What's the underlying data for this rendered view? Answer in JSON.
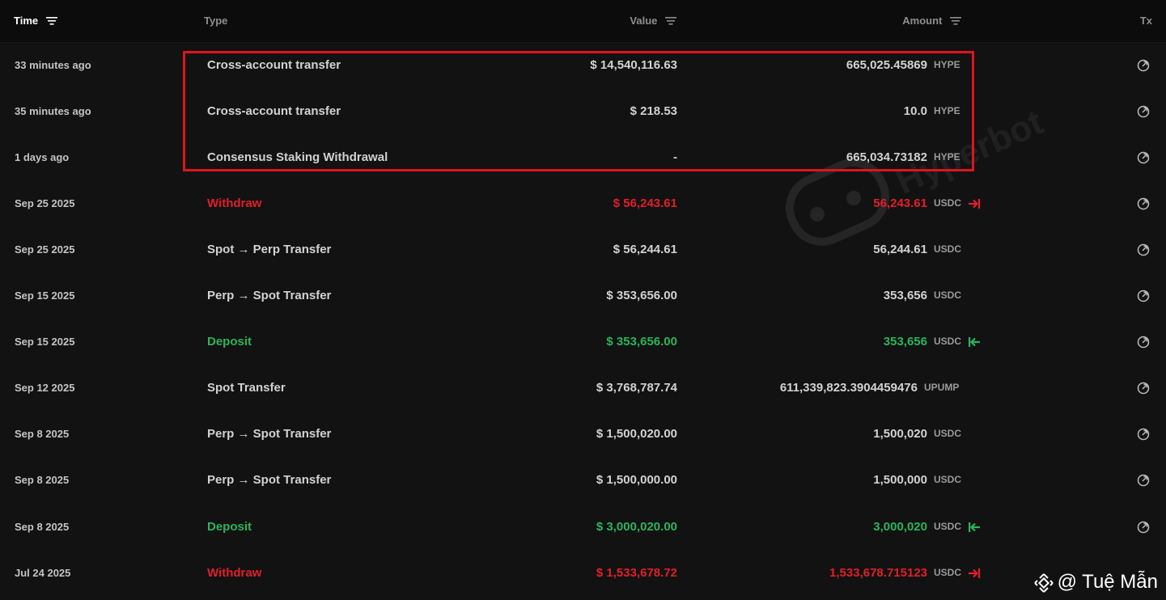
{
  "header": {
    "time": "Time",
    "type": "Type",
    "value": "Value",
    "amount": "Amount",
    "tx": "Tx"
  },
  "rows": [
    {
      "time": "33 minutes ago",
      "type": "Cross-account transfer",
      "value": "$ 14,540,116.63",
      "amount": "665,025.45869",
      "token": "HYPE",
      "tone": "neutral",
      "direction": ""
    },
    {
      "time": "35 minutes ago",
      "type": "Cross-account transfer",
      "value": "$ 218.53",
      "amount": "10.0",
      "token": "HYPE",
      "tone": "neutral",
      "direction": ""
    },
    {
      "time": "1 days ago",
      "type": "Consensus Staking Withdrawal",
      "value": "-",
      "amount": "665,034.73182",
      "token": "HYPE",
      "tone": "neutral",
      "direction": ""
    },
    {
      "time": "Sep 25 2025",
      "type": "Withdraw",
      "value": "$ 56,243.61",
      "amount": "56,243.61",
      "token": "USDC",
      "tone": "red",
      "direction": "out"
    },
    {
      "time": "Sep 25 2025",
      "type": "Spot → Perp Transfer",
      "value": "$ 56,244.61",
      "amount": "56,244.61",
      "token": "USDC",
      "tone": "neutral",
      "direction": ""
    },
    {
      "time": "Sep 15 2025",
      "type": "Perp → Spot Transfer",
      "value": "$ 353,656.00",
      "amount": "353,656",
      "token": "USDC",
      "tone": "neutral",
      "direction": ""
    },
    {
      "time": "Sep 15 2025",
      "type": "Deposit",
      "value": "$ 353,656.00",
      "amount": "353,656",
      "token": "USDC",
      "tone": "green",
      "direction": "in"
    },
    {
      "time": "Sep 12 2025",
      "type": "Spot Transfer",
      "value": "$ 3,768,787.74",
      "amount": "611,339,823.3904459476",
      "token": "UPUMP",
      "tone": "neutral",
      "direction": ""
    },
    {
      "time": "Sep 8 2025",
      "type": "Perp → Spot Transfer",
      "value": "$ 1,500,020.00",
      "amount": "1,500,020",
      "token": "USDC",
      "tone": "neutral",
      "direction": ""
    },
    {
      "time": "Sep 8 2025",
      "type": "Perp → Spot Transfer",
      "value": "$ 1,500,000.00",
      "amount": "1,500,000",
      "token": "USDC",
      "tone": "neutral",
      "direction": ""
    },
    {
      "time": "Sep 8 2025",
      "type": "Deposit",
      "value": "$ 3,000,020.00",
      "amount": "3,000,020",
      "token": "USDC",
      "tone": "green",
      "direction": "in"
    },
    {
      "time": "Jul 24 2025",
      "type": "Withdraw",
      "value": "$ 1,533,678.72",
      "amount": "1,533,678.715123",
      "token": "USDC",
      "tone": "red",
      "direction": "out"
    }
  ],
  "watermark": "Hyperbot",
  "credit": "@ Tuệ Mẫn",
  "colors": {
    "red": "#e01f2a",
    "green": "#2bb45a",
    "highlight": "#e0141e"
  }
}
